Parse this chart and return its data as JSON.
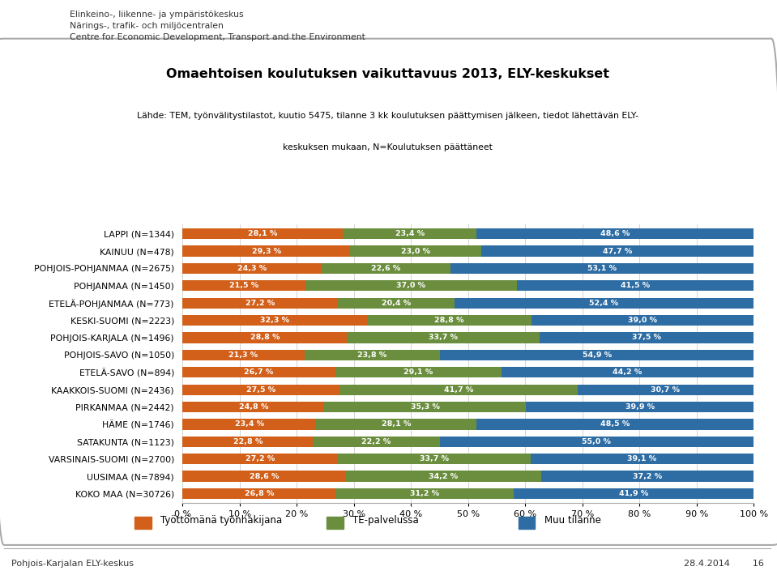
{
  "title_main": "Omaehtoisen koulutuksen vaikuttavuus 2013, ELY-keskukset",
  "title_sub1": "Lähde: TEM, työnvälitystilastot, kuutio 5475, tilanne 3 kk koulutuksen päättymisen jälkeen, tiedot lähettävän ELY-",
  "title_sub2": "keskuksen mukaan, N=Koulutuksen päättäneet",
  "categories": [
    "LAPPI (N=1344)",
    "KAINUU (N=478)",
    "POHJOIS-POHJANMAA (N=2675)",
    "POHJANMAA (N=1450)",
    "ETELÄ-POHJANMAA (N=773)",
    "KESKI-SUOMI (N=2223)",
    "POHJOIS-KARJALA (N=1496)",
    "POHJOIS-SAVO (N=1050)",
    "ETELÄ-SAVO (N=894)",
    "KAAKKOIS-SUOMI (N=2436)",
    "PIRKANMAA (N=2442)",
    "HÄME (N=1746)",
    "SATAKUNTA (N=1123)",
    "VARSINAIS-SUOMI (N=2700)",
    "UUSIMAA (N=7894)",
    "KOKO MAA (N=30726)"
  ],
  "values_orange": [
    28.1,
    29.3,
    24.3,
    21.5,
    27.2,
    32.3,
    28.8,
    21.3,
    26.7,
    27.5,
    24.8,
    23.4,
    22.8,
    27.2,
    28.6,
    26.8
  ],
  "values_green": [
    23.4,
    23.0,
    22.6,
    37.0,
    20.4,
    28.8,
    33.7,
    23.8,
    29.1,
    41.7,
    35.3,
    28.1,
    22.2,
    33.7,
    34.2,
    31.2
  ],
  "values_blue": [
    48.6,
    47.7,
    53.1,
    41.5,
    52.4,
    39.0,
    37.5,
    54.9,
    44.2,
    30.7,
    39.9,
    48.5,
    55.0,
    39.1,
    37.2,
    41.9
  ],
  "color_orange": "#D2601A",
  "color_green": "#6B8E3E",
  "color_blue": "#2E6DA4",
  "legend_labels": [
    "Työttömänä työnhakijana",
    "TE-palvelussa",
    "Muu tilanne"
  ],
  "background_color": "#FFFFFF",
  "footer_left": "Pohjois-Karjalan ELY-keskus",
  "footer_right": "28.4.2014        16",
  "header_line1": "Elinkeino-, liikenne- ja ympäristökeskus",
  "header_line2": "Närings-, trafik- och miljöcentralen",
  "header_line3": "Centre for Economic Development, Transport and the Environment"
}
